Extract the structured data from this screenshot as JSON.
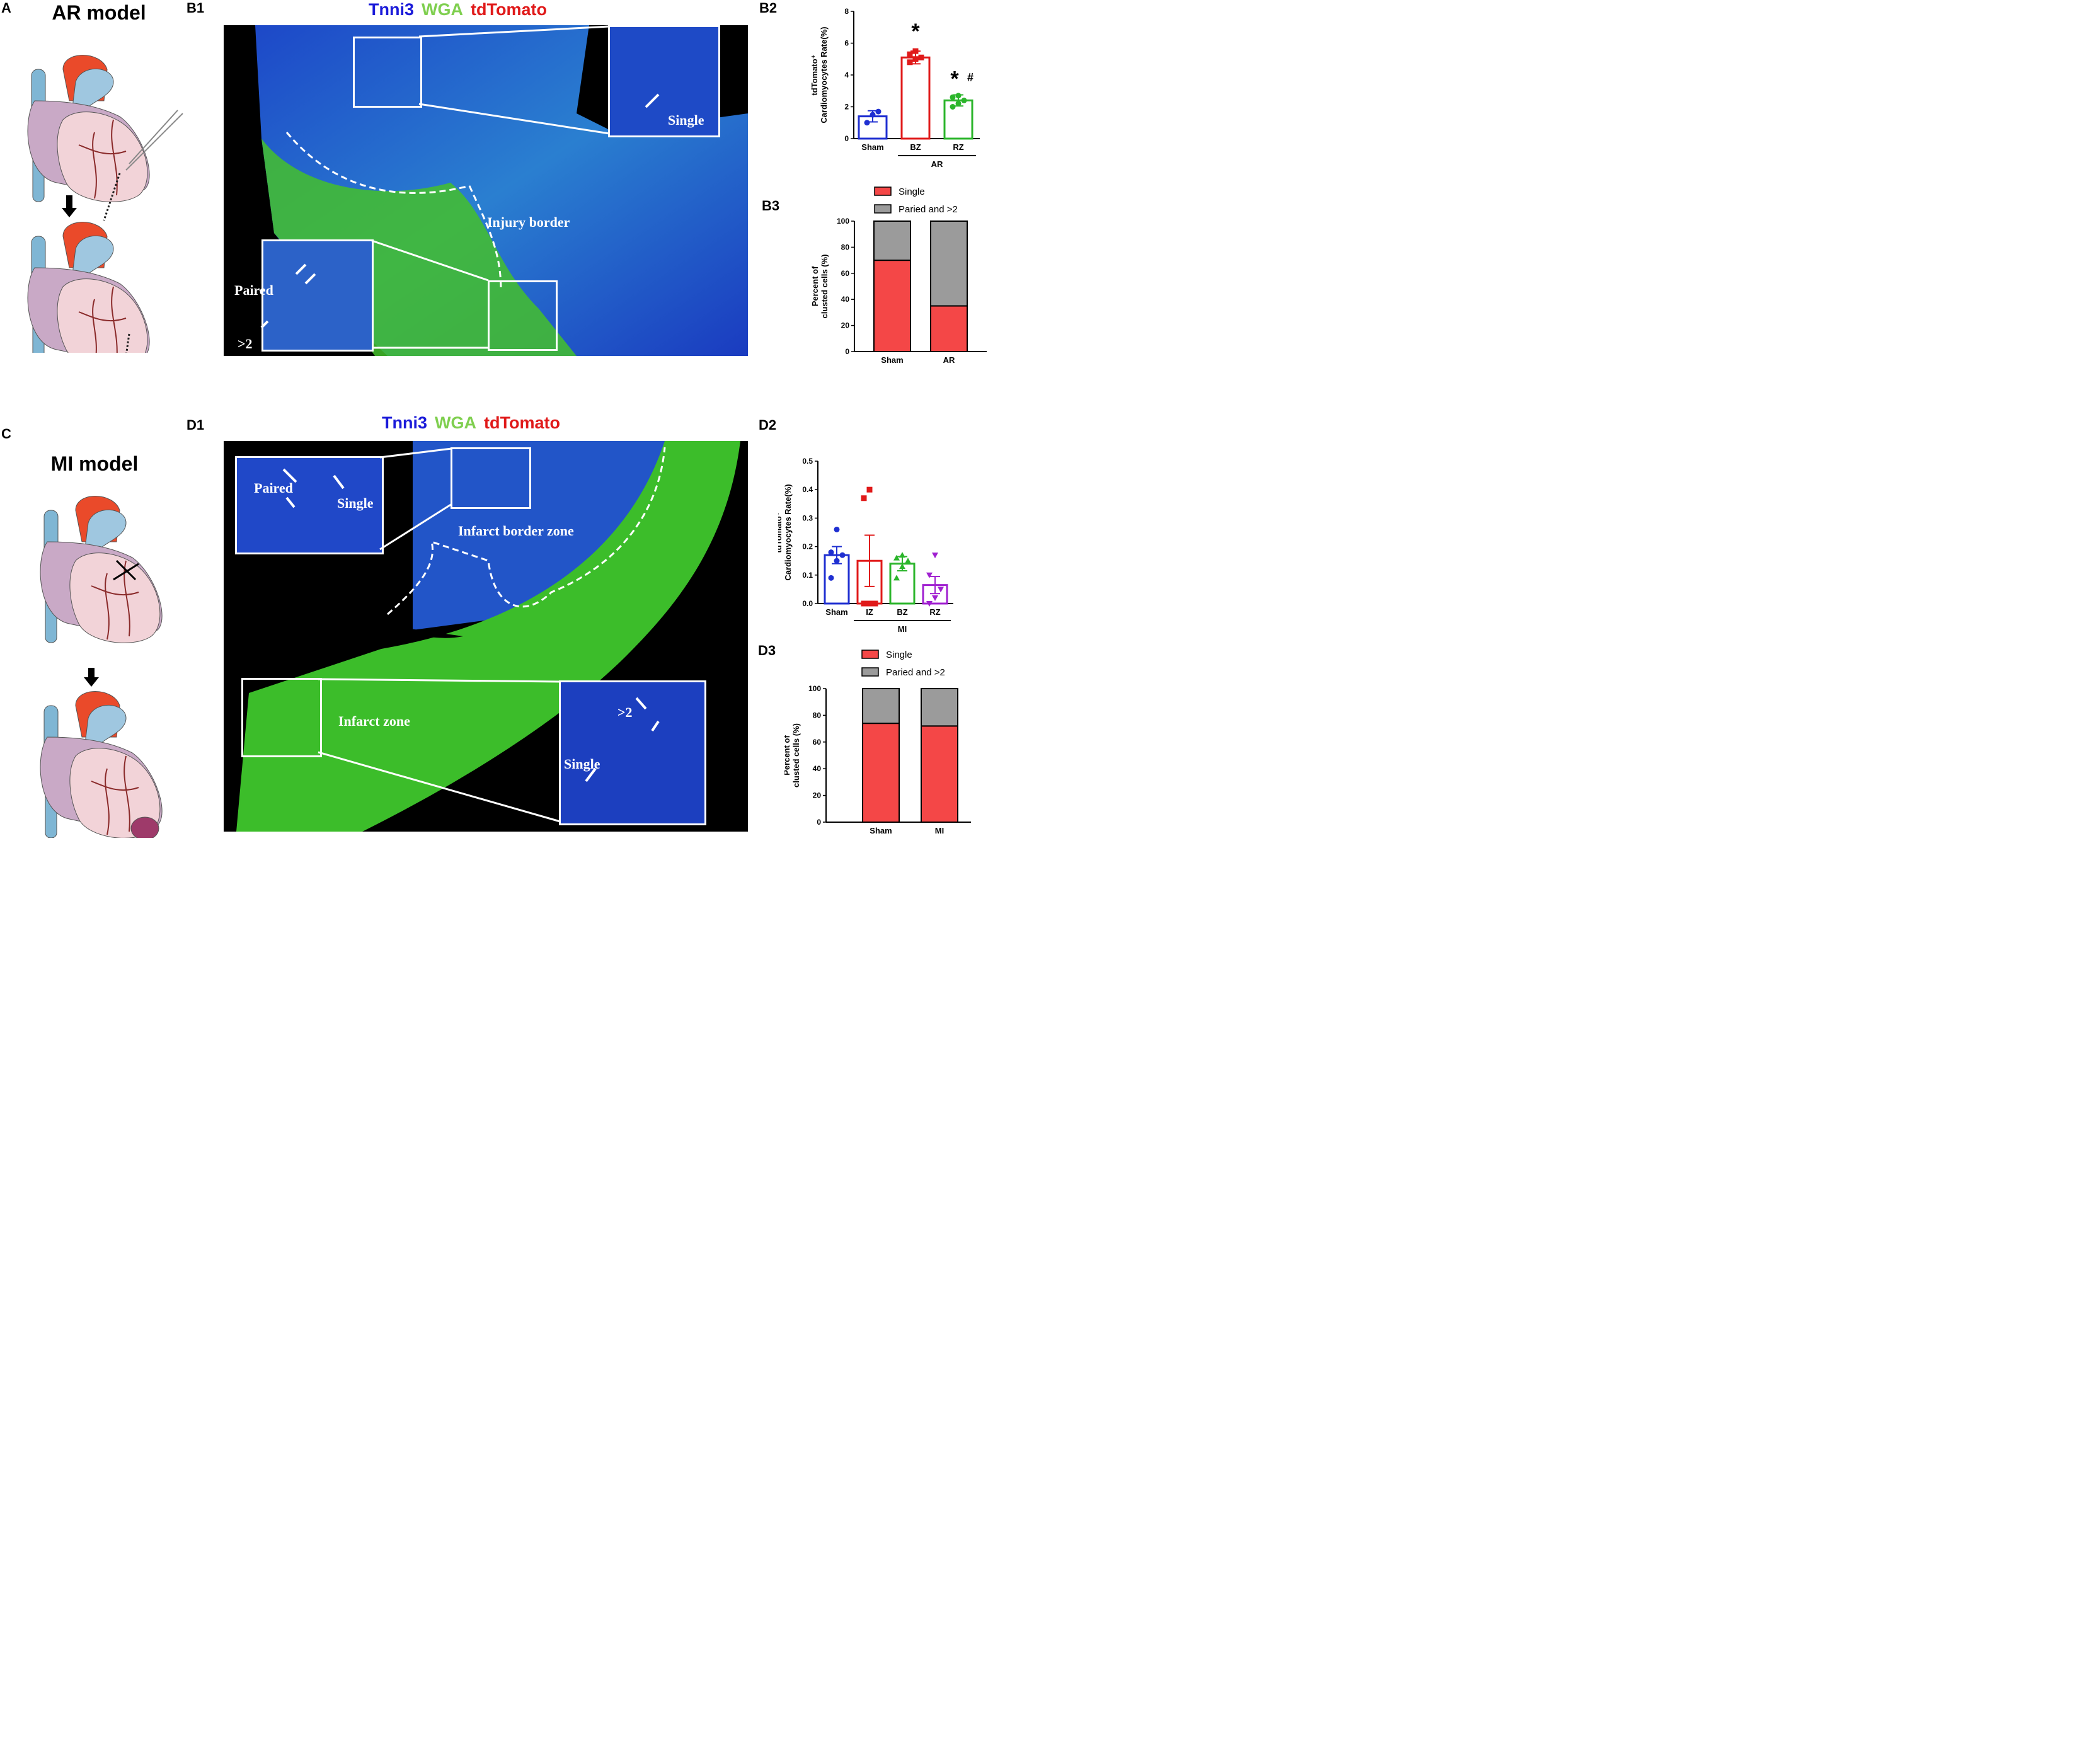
{
  "labels": {
    "A": "A",
    "B1": "B1",
    "B2": "B2",
    "B3": "B3",
    "C": "C",
    "D1": "D1",
    "D2": "D2",
    "D3": "D3"
  },
  "models": {
    "ar": "AR model",
    "mi": "MI model"
  },
  "stains": {
    "tnni3": "Tnni3",
    "wga": "WGA",
    "tdtomato": "tdTomato"
  },
  "colors": {
    "tnni3": "#1a1ad9",
    "wga": "#7fcf4f",
    "tdtomato": "#e01a1a",
    "single": "#f44747",
    "paired": "#9b9b9b",
    "sham": "#1f2fd1",
    "bz": "#e01a1a",
    "rz": "#2bb52b",
    "iz": "#e01a1a",
    "mi_bz": "#2bb52b",
    "mi_rz": "#a020d0"
  },
  "b1": {
    "single": "Single",
    "injury_border": "Injury border",
    "paired": "Paired",
    "gt2": ">2"
  },
  "d1": {
    "paired": "Paired",
    "single": "Single",
    "border_zone": "Infarct border zone",
    "infarct_zone": "Infarct zone",
    "gt2": ">2",
    "single2": "Single"
  },
  "chart_data": [
    {
      "id": "B2",
      "type": "bar",
      "ylabel_line1": "tdTomato⁺",
      "ylabel_line2": "Cardiomyocytes Rate(%)",
      "categories": [
        "Sham",
        "BZ",
        "RZ"
      ],
      "values": [
        1.4,
        5.1,
        2.4
      ],
      "errors": [
        0.35,
        0.4,
        0.35
      ],
      "points": [
        [
          1.0,
          1.5,
          1.7
        ],
        [
          4.8,
          5.0,
          5.1,
          5.3,
          5.5
        ],
        [
          2.0,
          2.2,
          2.4,
          2.6,
          2.7
        ]
      ],
      "ylim": [
        0,
        8
      ],
      "yticks": [
        "0",
        "2",
        "4",
        "6",
        "8"
      ],
      "group_label": "AR",
      "annotations": [
        "*",
        "*",
        "#"
      ]
    },
    {
      "id": "B3",
      "type": "bar",
      "stacked": true,
      "ylabel_line1": "Percent of",
      "ylabel_line2": "clusted cells (%)",
      "categories": [
        "Sham",
        "AR"
      ],
      "series": [
        {
          "name": "Single",
          "values": [
            70,
            35
          ]
        },
        {
          "name": "Paried and >2",
          "values": [
            30,
            65
          ]
        }
      ],
      "ylim": [
        0,
        100
      ],
      "yticks": [
        "0",
        "20",
        "40",
        "60",
        "80",
        "100"
      ]
    },
    {
      "id": "D2",
      "type": "bar",
      "ylabel_line1": "tdTomato⁺",
      "ylabel_line2": "Cardiomyocytes Rate(%)",
      "categories": [
        "Sham",
        "IZ",
        "BZ",
        "RZ"
      ],
      "values": [
        0.17,
        0.15,
        0.14,
        0.065
      ],
      "errors": [
        0.03,
        0.09,
        0.025,
        0.03
      ],
      "points": [
        [
          0.09,
          0.15,
          0.17,
          0.18,
          0.26
        ],
        [
          0.0,
          0.0,
          0.0,
          0.37,
          0.4
        ],
        [
          0.09,
          0.13,
          0.15,
          0.16,
          0.17
        ],
        [
          0.0,
          0.02,
          0.05,
          0.1,
          0.17
        ]
      ],
      "ylim": [
        0,
        0.5
      ],
      "yticks": [
        "0.0",
        "0.1",
        "0.2",
        "0.3",
        "0.4",
        "0.5"
      ],
      "group_label": "MI"
    },
    {
      "id": "D3",
      "type": "bar",
      "stacked": true,
      "ylabel_line1": "Percent of",
      "ylabel_line2": "clusted cells (%)",
      "categories": [
        "Sham",
        "MI"
      ],
      "series": [
        {
          "name": "Single",
          "values": [
            74,
            72
          ]
        },
        {
          "name": "Paried and >2",
          "values": [
            26,
            28
          ]
        }
      ],
      "ylim": [
        0,
        100
      ],
      "yticks": [
        "0",
        "20",
        "40",
        "60",
        "80",
        "100"
      ]
    }
  ]
}
